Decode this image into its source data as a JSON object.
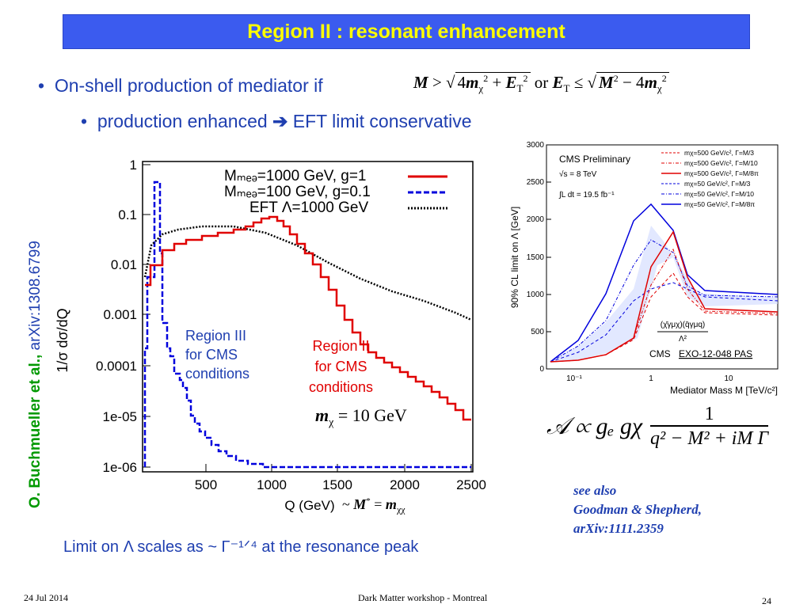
{
  "title": "Region II : resonant enhancement",
  "bullet1": "On-shell production of mediator if",
  "bullet2": "production enhanced",
  "bullet2_tail": "EFT limit conservative",
  "formula_top": {
    "lhs": "M >",
    "sqrt1": "4mχ² + E̸T²",
    "or": "or",
    "mid": "E̸T ≤",
    "sqrt2": "M² − 4mχ²"
  },
  "side_author": "O. Buchmueller et al.,",
  "side_arxiv": "arXiv:1308.6799",
  "left_plot": {
    "ylabel": "1/σ dσ/dQ",
    "xlabel": "Q (GeV)",
    "yticks": [
      "1",
      "0.1",
      "0.01",
      "0.001",
      "0.0001",
      "1e-05",
      "1e-06"
    ],
    "xticks": [
      "500",
      "1000",
      "1500",
      "2000",
      "2500"
    ],
    "legend": [
      "Mₘₑₔ=1000 GeV, g=1",
      "Mₘₑₔ=100 GeV,  g=0.1",
      "EFT  Λ=1000 GeV"
    ],
    "region3": [
      "Region III",
      "for CMS",
      "conditions"
    ],
    "region2": [
      "Region II",
      "for CMS",
      "conditions"
    ],
    "mchi": "mχ = 10 GeV",
    "mstar": "~ M* = mχχ"
  },
  "right_plot": {
    "ylabel": "90% CL limit on Λ [GeV]",
    "xlabel": "Mediator Mass M [TeV/c²]",
    "title": "CMS Preliminary",
    "energy": "√s = 8 TeV",
    "lumi": "∫L dt = 19.5 fb⁻¹",
    "yticks": [
      "0",
      "500",
      "1000",
      "1500",
      "2000",
      "2500",
      "3000"
    ],
    "xticks": [
      "10⁻¹",
      "1",
      "10"
    ],
    "legend": [
      "mχ=500 GeV/c², Γ=M/3",
      "mχ=500 GeV/c², Γ=M/10",
      "mχ=500 GeV/c², Γ=M/8π",
      "mχ=50 GeV/c², Γ=M/3",
      "mχ=50 GeV/c², Γ=M/10",
      "mχ=50 GeV/c², Γ=M/8π"
    ],
    "operator_num": "(χ̄γμχ)(q̄γμq)",
    "operator_den": "Λ²",
    "cms_ref_prefix": "CMS",
    "cms_ref_link": "EXO-12-048 PAS"
  },
  "amplitude": "𝒜 ∝ gₑ gχ",
  "amplitude_num": "1",
  "amplitude_den": "q² − M² + iM Γ",
  "see_also": [
    "see also",
    "Goodman & Shepherd,",
    "arXiv:1111.2359"
  ],
  "limit_text": "Limit on Λ scales as ~ Γ⁻¹ᐟ⁴ at the resonance peak",
  "footer": {
    "date": "24 Jul 2014",
    "center": "Dark Matter workshop - Montreal",
    "page": "24"
  },
  "colors": {
    "title_bg": "#3b5bef",
    "title_fg": "#ffff00",
    "accent": "#1f3fb0",
    "red": "#e00000",
    "blue": "#0000dd"
  }
}
